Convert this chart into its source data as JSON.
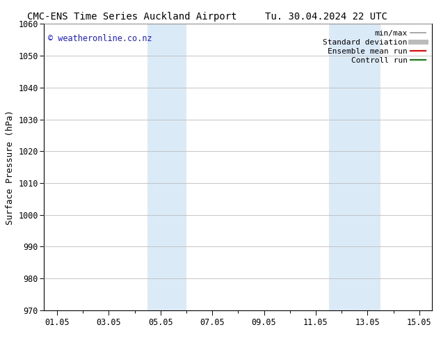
{
  "title_left": "CMC-ENS Time Series Auckland Airport",
  "title_right": "Tu. 30.04.2024 22 UTC",
  "ylabel": "Surface Pressure (hPa)",
  "xlabel": "",
  "ylim": [
    970,
    1060
  ],
  "yticks": [
    970,
    980,
    990,
    1000,
    1010,
    1020,
    1030,
    1040,
    1050,
    1060
  ],
  "xtick_labels": [
    "01.05",
    "03.05",
    "05.05",
    "07.05",
    "09.05",
    "11.05",
    "13.05",
    "15.05"
  ],
  "xtick_positions": [
    0,
    2,
    4,
    6,
    8,
    10,
    12,
    14
  ],
  "xlim": [
    -0.5,
    14.5
  ],
  "shaded_bands": [
    {
      "x_start": 3.5,
      "x_end": 5.0,
      "color": "#daeaf7"
    },
    {
      "x_start": 10.5,
      "x_end": 12.5,
      "color": "#daeaf7"
    }
  ],
  "copyright_text": "© weatheronline.co.nz",
  "copyright_color": "#1a1aff",
  "legend_entries": [
    {
      "label": "min/max",
      "color": "#999999",
      "lw": 1.2,
      "style": "solid"
    },
    {
      "label": "Standard deviation",
      "color": "#bbbbbb",
      "lw": 5,
      "style": "solid"
    },
    {
      "label": "Ensemble mean run",
      "color": "#ff0000",
      "lw": 1.5,
      "style": "solid"
    },
    {
      "label": "Controll run",
      "color": "#008800",
      "lw": 1.5,
      "style": "solid"
    }
  ],
  "bg_color": "#ffffff",
  "grid_color": "#bbbbbb",
  "title_fontsize": 10,
  "legend_fontsize": 8,
  "ylabel_fontsize": 9,
  "tick_fontsize": 8.5,
  "copyright_fontsize": 8.5
}
